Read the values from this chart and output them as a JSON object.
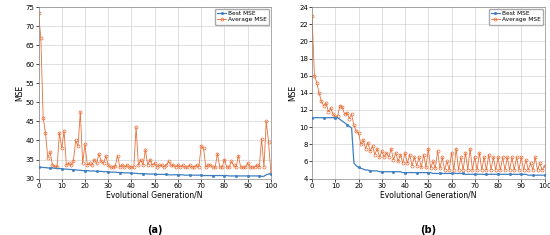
{
  "panel_a": {
    "title": "(a)",
    "xlabel": "Evolutional Generation/N",
    "ylabel": "MSE",
    "ylim": [
      30,
      75
    ],
    "yticks": [
      30,
      35,
      40,
      45,
      50,
      55,
      60,
      65,
      70,
      75
    ],
    "xlim": [
      0,
      100
    ],
    "xticks": [
      0,
      10,
      20,
      30,
      40,
      50,
      60,
      70,
      80,
      90,
      100
    ],
    "best_color": "#3F7FBF",
    "avg_color": "#E8703A"
  },
  "panel_b": {
    "title": "(b)",
    "xlabel": "Evolutional Generation/N",
    "ylabel": "MSE",
    "ylim": [
      4,
      24
    ],
    "yticks": [
      4,
      6,
      8,
      10,
      12,
      14,
      16,
      18,
      20,
      22,
      24
    ],
    "xlim": [
      0,
      100
    ],
    "xticks": [
      0,
      10,
      20,
      30,
      40,
      50,
      60,
      70,
      80,
      90,
      100
    ],
    "best_color": "#3F7FBF",
    "avg_color": "#E8703A"
  },
  "legend_best": "Best MSE",
  "legend_avg": "Average MSE",
  "background_color": "#ffffff",
  "grid_color": "#c8c8c8"
}
